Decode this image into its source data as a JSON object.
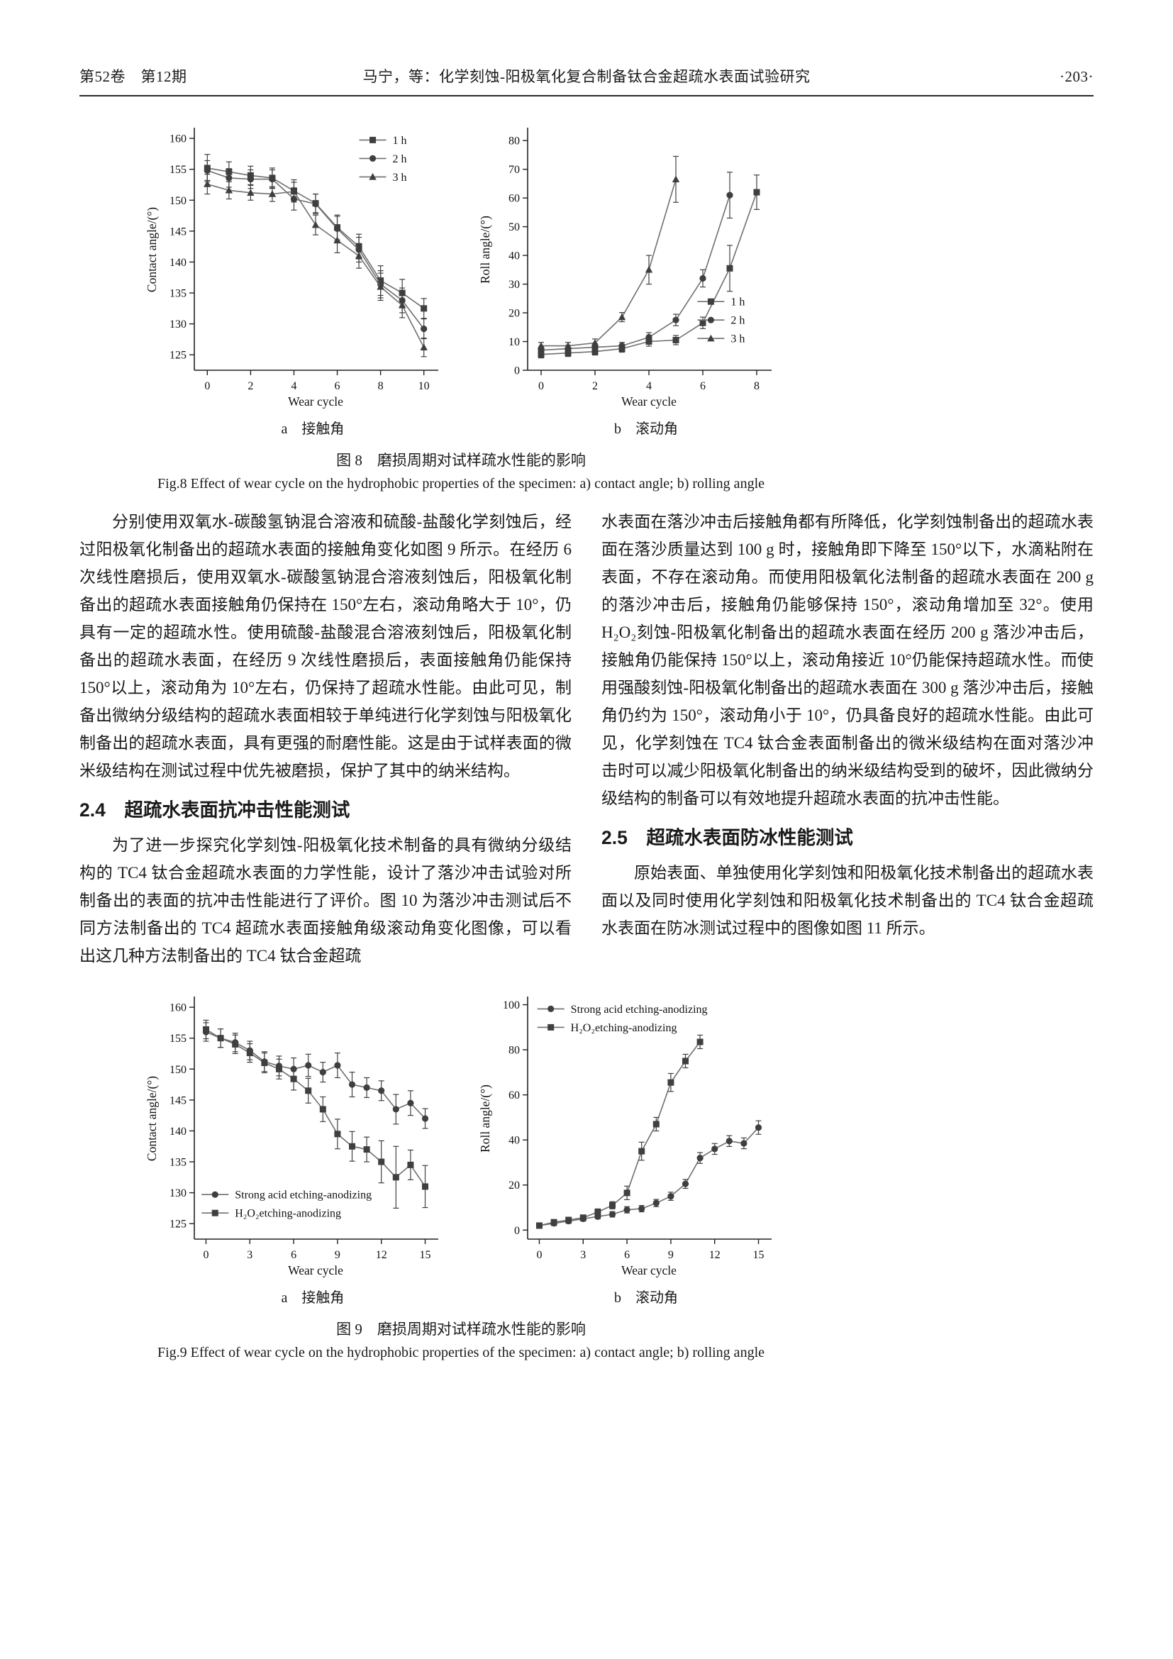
{
  "colors": {
    "chart_line": "#6f6f6f",
    "chart_marker": "#3f3f3f",
    "axis": "#222222"
  },
  "header": {
    "left": "第52卷　第12期",
    "center": "马宁，等：化学刻蚀-阳极氧化复合制备钛合金超疏水表面试验研究",
    "right": "·203·"
  },
  "figure8": {
    "caption_zh": "图 8　磨损周期对试样疏水性能的影响",
    "caption_en": "Fig.8 Effect of wear cycle on the hydrophobic properties of the specimen: a) contact angle; b) rolling angle",
    "sub_a": "a　接触角",
    "sub_b": "b　滚动角"
  },
  "figure9": {
    "caption_zh": "图 9　磨损周期对试样疏水性能的影响",
    "caption_en": "Fig.9 Effect of wear cycle on the hydrophobic properties of the specimen: a) contact angle; b) rolling angle",
    "sub_a": "a　接触角",
    "sub_b": "b　滚动角"
  },
  "body": {
    "p1": "分别使用双氧水-碳酸氢钠混合溶液和硫酸-盐酸化学刻蚀后，经过阳极氧化制备出的超疏水表面的接触角变化如图 9 所示。在经历 6 次线性磨损后，使用双氧水-碳酸氢钠混合溶液刻蚀后，阳极氧化制备出的超疏水表面接触角仍保持在 150°左右，滚动角略大于 10°，仍具有一定的超疏水性。使用硫酸-盐酸混合溶液刻蚀后，阳极氧化制备出的超疏水表面，在经历 9 次线性磨损后，表面接触角仍能保持 150°以上，滚动角为 10°左右，仍保持了超疏水性能。由此可见，制备出微纳分级结构的超疏水表面相较于单纯进行化学刻蚀与阳极氧化制备出的超疏水表面，具有更强的耐磨性能。这是由于试样表面的微米级结构在测试过程中优先被磨损，保护了其中的纳米结构。",
    "sec24": "2.4　超疏水表面抗冲击性能测试",
    "p2": "为了进一步探究化学刻蚀-阳极氧化技术制备的具有微纳分级结构的 TC4 钛合金超疏水表面的力学性能，设计了落沙冲击试验对所制备出的表面的抗冲击性能进行了评价。图 10 为落沙冲击测试后不同方法制备出的 TC4 超疏水表面接触角级滚动角变化图像，可以看出这几种方法制备出的 TC4 钛合金超疏",
    "p3": "水表面在落沙冲击后接触角都有所降低，化学刻蚀制备出的超疏水表面在落沙质量达到 100 g 时，接触角即下降至 150°以下，水滴粘附在表面，不存在滚动角。而使用阳极氧化法制备的超疏水表面在 200 g 的落沙冲击后，接触角仍能够保持 150°，滚动角增加至 32°。使用 H₂O₂刻蚀-阳极氧化制备出的超疏水表面在经历 200 g 落沙冲击后，接触角仍能保持 150°以上，滚动角接近 10°仍能保持超疏水性。而使用强酸刻蚀-阳极氧化制备出的超疏水表面在 300 g 落沙冲击后，接触角仍约为 150°，滚动角小于 10°，仍具备良好的超疏水性能。由此可见，化学刻蚀在 TC4 钛合金表面制备出的微米级结构在面对落沙冲击时可以减少阳极氧化制备出的纳米级结构受到的破坏，因此微纳分级结构的制备可以有效地提升超疏水表面的抗冲击性能。",
    "sec25": "2.5　超疏水表面防冰性能测试",
    "p4": "原始表面、单独使用化学刻蚀和阳极氧化技术制备出的超疏水表面以及同时使用化学刻蚀和阳极氧化技术制备出的 TC4 钛合金超疏水表面在防冰测试过程中的图像如图 11 所示。"
  },
  "chart_data": [
    {
      "id": "fig8a",
      "type": "line",
      "title": "",
      "xlabel": "Wear cycle",
      "ylabel": "Contact angle/(°)",
      "x": [
        0,
        1,
        2,
        3,
        4,
        5,
        6,
        7,
        8,
        9,
        10
      ],
      "xticks": [
        0,
        2,
        4,
        6,
        8,
        10
      ],
      "yticks": [
        125,
        130,
        135,
        140,
        145,
        150,
        155,
        160
      ],
      "xlim": [
        -0.6,
        10.6
      ],
      "ylim": [
        122.5,
        161.5
      ],
      "legend": {
        "x": 0.68,
        "y": 0.01
      },
      "series": [
        {
          "name": "1 h",
          "marker": "square",
          "values": [
            155.2,
            154.6,
            154.0,
            153.6,
            151.5,
            149.5,
            145.6,
            142.5,
            137.0,
            135.0,
            132.5
          ],
          "errors": [
            2.2,
            1.6,
            1.5,
            1.6,
            1.8,
            1.5,
            2.0,
            2.0,
            2.4,
            2.2,
            1.6
          ]
        },
        {
          "name": "2 h",
          "marker": "circle",
          "values": [
            154.8,
            153.6,
            153.4,
            153.4,
            150.2,
            149.4,
            145.4,
            142.0,
            136.4,
            133.8,
            129.2
          ],
          "errors": [
            1.6,
            1.5,
            1.5,
            1.5,
            1.8,
            1.6,
            2.0,
            2.0,
            2.2,
            2.0,
            1.6
          ]
        },
        {
          "name": "3 h",
          "marker": "triangle",
          "values": [
            152.6,
            151.6,
            151.2,
            151.0,
            151.4,
            146.0,
            143.5,
            141.0,
            136.0,
            133.0,
            126.2
          ],
          "errors": [
            1.6,
            1.4,
            1.2,
            1.2,
            1.5,
            1.6,
            2.0,
            2.0,
            2.2,
            2.0,
            1.5
          ]
        }
      ]
    },
    {
      "id": "fig8b",
      "type": "line",
      "title": "",
      "xlabel": "Wear cycle",
      "ylabel": "Roll angle/(°)",
      "x": [
        0,
        1,
        2,
        3,
        4,
        5,
        6,
        7,
        8
      ],
      "xticks": [
        0,
        2,
        4,
        6,
        8
      ],
      "yticks": [
        0,
        10,
        20,
        30,
        40,
        50,
        60,
        70,
        80
      ],
      "xlim": [
        -0.5,
        8.5
      ],
      "ylim": [
        0,
        84
      ],
      "legend": {
        "x": 0.7,
        "y": 0.68
      },
      "series": [
        {
          "name": "1 h",
          "marker": "square",
          "values": [
            5.5,
            6.0,
            6.5,
            7.5,
            10.0,
            10.5,
            16.5,
            35.5,
            62.0
          ],
          "errors": [
            1.2,
            1.2,
            1.2,
            1.2,
            1.6,
            1.6,
            2.0,
            8.0,
            6.0
          ]
        },
        {
          "name": "2 h",
          "marker": "circle",
          "values": [
            7.0,
            7.5,
            8.0,
            8.5,
            11.5,
            17.5,
            32.0,
            61.0
          ],
          "errors": [
            1.2,
            1.2,
            1.2,
            1.2,
            1.6,
            2.0,
            3.0,
            8.0
          ]
        },
        {
          "name": "3 h",
          "marker": "triangle",
          "values": [
            8.5,
            8.5,
            9.5,
            18.5,
            35.0,
            66.5
          ],
          "errors": [
            1.2,
            1.2,
            1.4,
            1.6,
            5.0,
            8.0
          ]
        }
      ]
    },
    {
      "id": "fig9a",
      "type": "line",
      "title": "",
      "xlabel": "Wear cycle",
      "ylabel": "Contact angle/(°)",
      "x": [
        0,
        1,
        2,
        3,
        4,
        5,
        6,
        7,
        8,
        9,
        10,
        11,
        12,
        13,
        14,
        15
      ],
      "xticks": [
        0,
        3,
        6,
        9,
        12,
        15
      ],
      "yticks": [
        125,
        130,
        135,
        140,
        145,
        150,
        155,
        160
      ],
      "xlim": [
        -0.8,
        15.8
      ],
      "ylim": [
        122.5,
        161.5
      ],
      "legend": {
        "x": 0.03,
        "y": 0.78
      },
      "series": [
        {
          "name": "Strong acid etching-anodizing",
          "marker": "circle",
          "values": [
            156.0,
            155.0,
            154.3,
            153.0,
            151.2,
            150.5,
            150.0,
            150.6,
            149.5,
            150.6,
            147.5,
            147.0,
            146.5,
            143.5,
            144.5,
            142.0
          ],
          "errors": [
            1.5,
            1.5,
            1.5,
            1.5,
            1.6,
            1.6,
            1.8,
            1.8,
            1.6,
            2.0,
            2.0,
            1.6,
            1.6,
            2.4,
            2.0,
            1.6
          ]
        },
        {
          "name": "H₂O₂etching-anodizing",
          "marker": "square",
          "values": [
            156.4,
            155.0,
            154.0,
            152.6,
            151.0,
            150.0,
            148.4,
            146.5,
            143.5,
            139.5,
            137.5,
            137.0,
            135.0,
            132.5,
            134.5,
            131.0
          ],
          "errors": [
            1.5,
            1.5,
            1.5,
            1.5,
            1.6,
            1.6,
            1.8,
            2.0,
            2.0,
            2.4,
            2.4,
            2.0,
            3.4,
            5.0,
            2.4,
            3.4
          ]
        }
      ]
    },
    {
      "id": "fig9b",
      "type": "line",
      "title": "",
      "xlabel": "Wear cycle",
      "ylabel": "Roll angle/(°)",
      "x": [
        0,
        1,
        2,
        3,
        4,
        5,
        6,
        7,
        8,
        9,
        10,
        11,
        12,
        13,
        14,
        15
      ],
      "xticks": [
        0,
        3,
        6,
        9,
        12,
        15
      ],
      "yticks": [
        0,
        20,
        40,
        60,
        80,
        100
      ],
      "xlim": [
        -0.8,
        15.8
      ],
      "ylim": [
        -4,
        103
      ],
      "legend": {
        "x": 0.04,
        "y": 0.01
      },
      "series": [
        {
          "name": "Strong acid etching-anodizing",
          "marker": "circle",
          "values": [
            2.0,
            3.0,
            4.0,
            5.0,
            6.0,
            7.0,
            9.0,
            9.5,
            12.0,
            15.0,
            20.5,
            32.0,
            36.0,
            39.5,
            38.5,
            45.5
          ],
          "errors": [
            1.0,
            1.0,
            1.0,
            1.0,
            1.0,
            1.2,
            1.4,
            1.4,
            1.6,
            1.8,
            2.0,
            2.4,
            2.4,
            2.4,
            2.4,
            3.0
          ]
        },
        {
          "name": "H₂O₂etching-anodizing",
          "marker": "square",
          "values": [
            2.0,
            3.5,
            4.5,
            5.5,
            8.0,
            11.0,
            16.5,
            35.0,
            47.0,
            65.5,
            75.0,
            83.5
          ],
          "errors": [
            1.0,
            1.0,
            1.0,
            1.2,
            1.4,
            1.6,
            3.0,
            4.0,
            3.0,
            4.0,
            3.0,
            3.0
          ]
        }
      ]
    }
  ]
}
